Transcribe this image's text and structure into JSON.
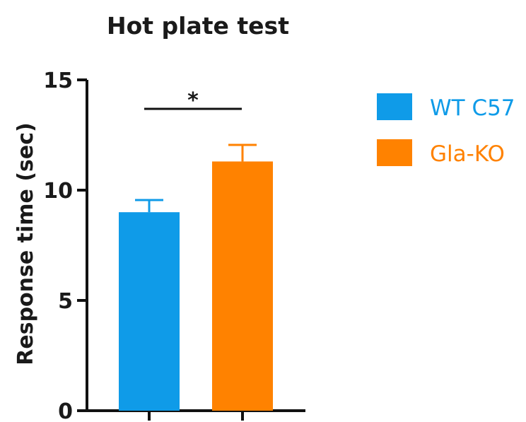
{
  "chart_data": {
    "type": "bar",
    "title": "Hot plate test",
    "ylabel": "Response time (sec)",
    "xlabel": "",
    "ylim": [
      0,
      15
    ],
    "yticks": [
      0,
      5,
      10,
      15
    ],
    "categories": [
      "WT C57",
      "Gla-KO"
    ],
    "series": [
      {
        "name": "WT C57",
        "value": 9.0,
        "error": 0.55,
        "color": "#0f9be8"
      },
      {
        "name": "Gla-KO",
        "value": 11.3,
        "error": 0.75,
        "color": "#ff8200"
      }
    ],
    "significance": {
      "label": "*",
      "between": [
        "WT C57",
        "Gla-KO"
      ]
    },
    "legend": {
      "position": "top-right"
    },
    "grid": false
  }
}
